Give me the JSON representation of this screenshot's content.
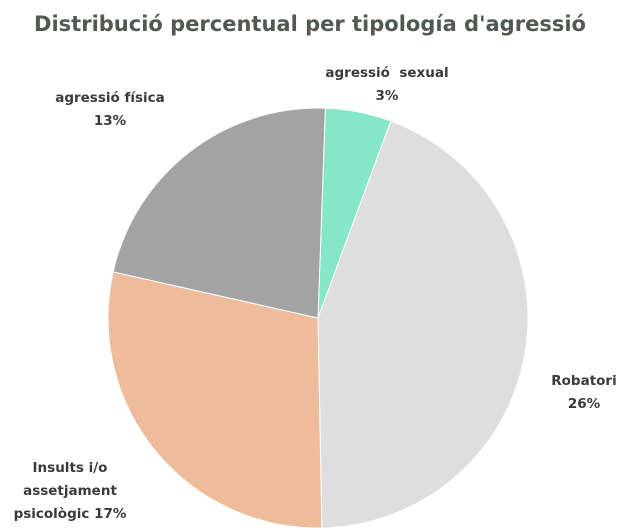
{
  "chart_data": {
    "type": "pie",
    "title": "Distribució percentual per tipología d'agressió",
    "categories": [
      "agressió  sexual",
      "Robatori",
      "Insults i/o assetjament psicològic",
      "agressió física"
    ],
    "values": [
      3,
      26,
      17,
      13
    ],
    "value_labels": [
      "3%",
      "26%",
      "17%",
      "13%"
    ],
    "colors": [
      "#86e6c8",
      "#dedede",
      "#efbc9b",
      "#a3a3a3"
    ]
  }
}
